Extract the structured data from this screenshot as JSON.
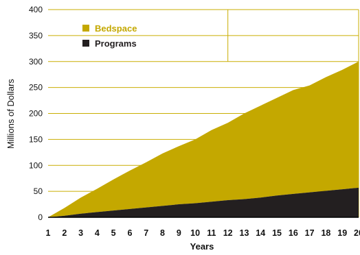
{
  "colors": {
    "gold": "#c4a800",
    "dark": "#231f20",
    "grid": "#c9ad00"
  },
  "chart_data": {
    "type": "area",
    "stacked": true,
    "xlabel": "Years",
    "ylabel": "Millions of Dollars",
    "ylim": [
      0,
      400
    ],
    "yticks": [
      0,
      50,
      100,
      150,
      200,
      250,
      300,
      350,
      400
    ],
    "x": [
      1,
      2,
      3,
      4,
      5,
      6,
      7,
      8,
      9,
      10,
      11,
      12,
      13,
      14,
      15,
      16,
      17,
      18,
      19,
      20
    ],
    "grid": true,
    "legend_position": "top-left",
    "series": [
      {
        "name": "Programs",
        "color": "#231f20",
        "values": [
          0,
          3,
          7,
          10,
          13,
          16,
          19,
          22,
          25,
          27,
          30,
          33,
          35,
          38,
          42,
          45,
          48,
          51,
          54,
          57
        ]
      },
      {
        "name": "Bedspace",
        "color": "#c4a800",
        "values": [
          0,
          15,
          31,
          45,
          60,
          74,
          87,
          101,
          112,
          123,
          138,
          149,
          165,
          177,
          188,
          200,
          206,
          219,
          230,
          243
        ]
      }
    ],
    "totals": [
      0,
      18,
      38,
      55,
      73,
      90,
      106,
      123,
      137,
      150,
      168,
      182,
      200,
      215,
      230,
      245,
      254,
      270,
      284,
      300
    ]
  }
}
